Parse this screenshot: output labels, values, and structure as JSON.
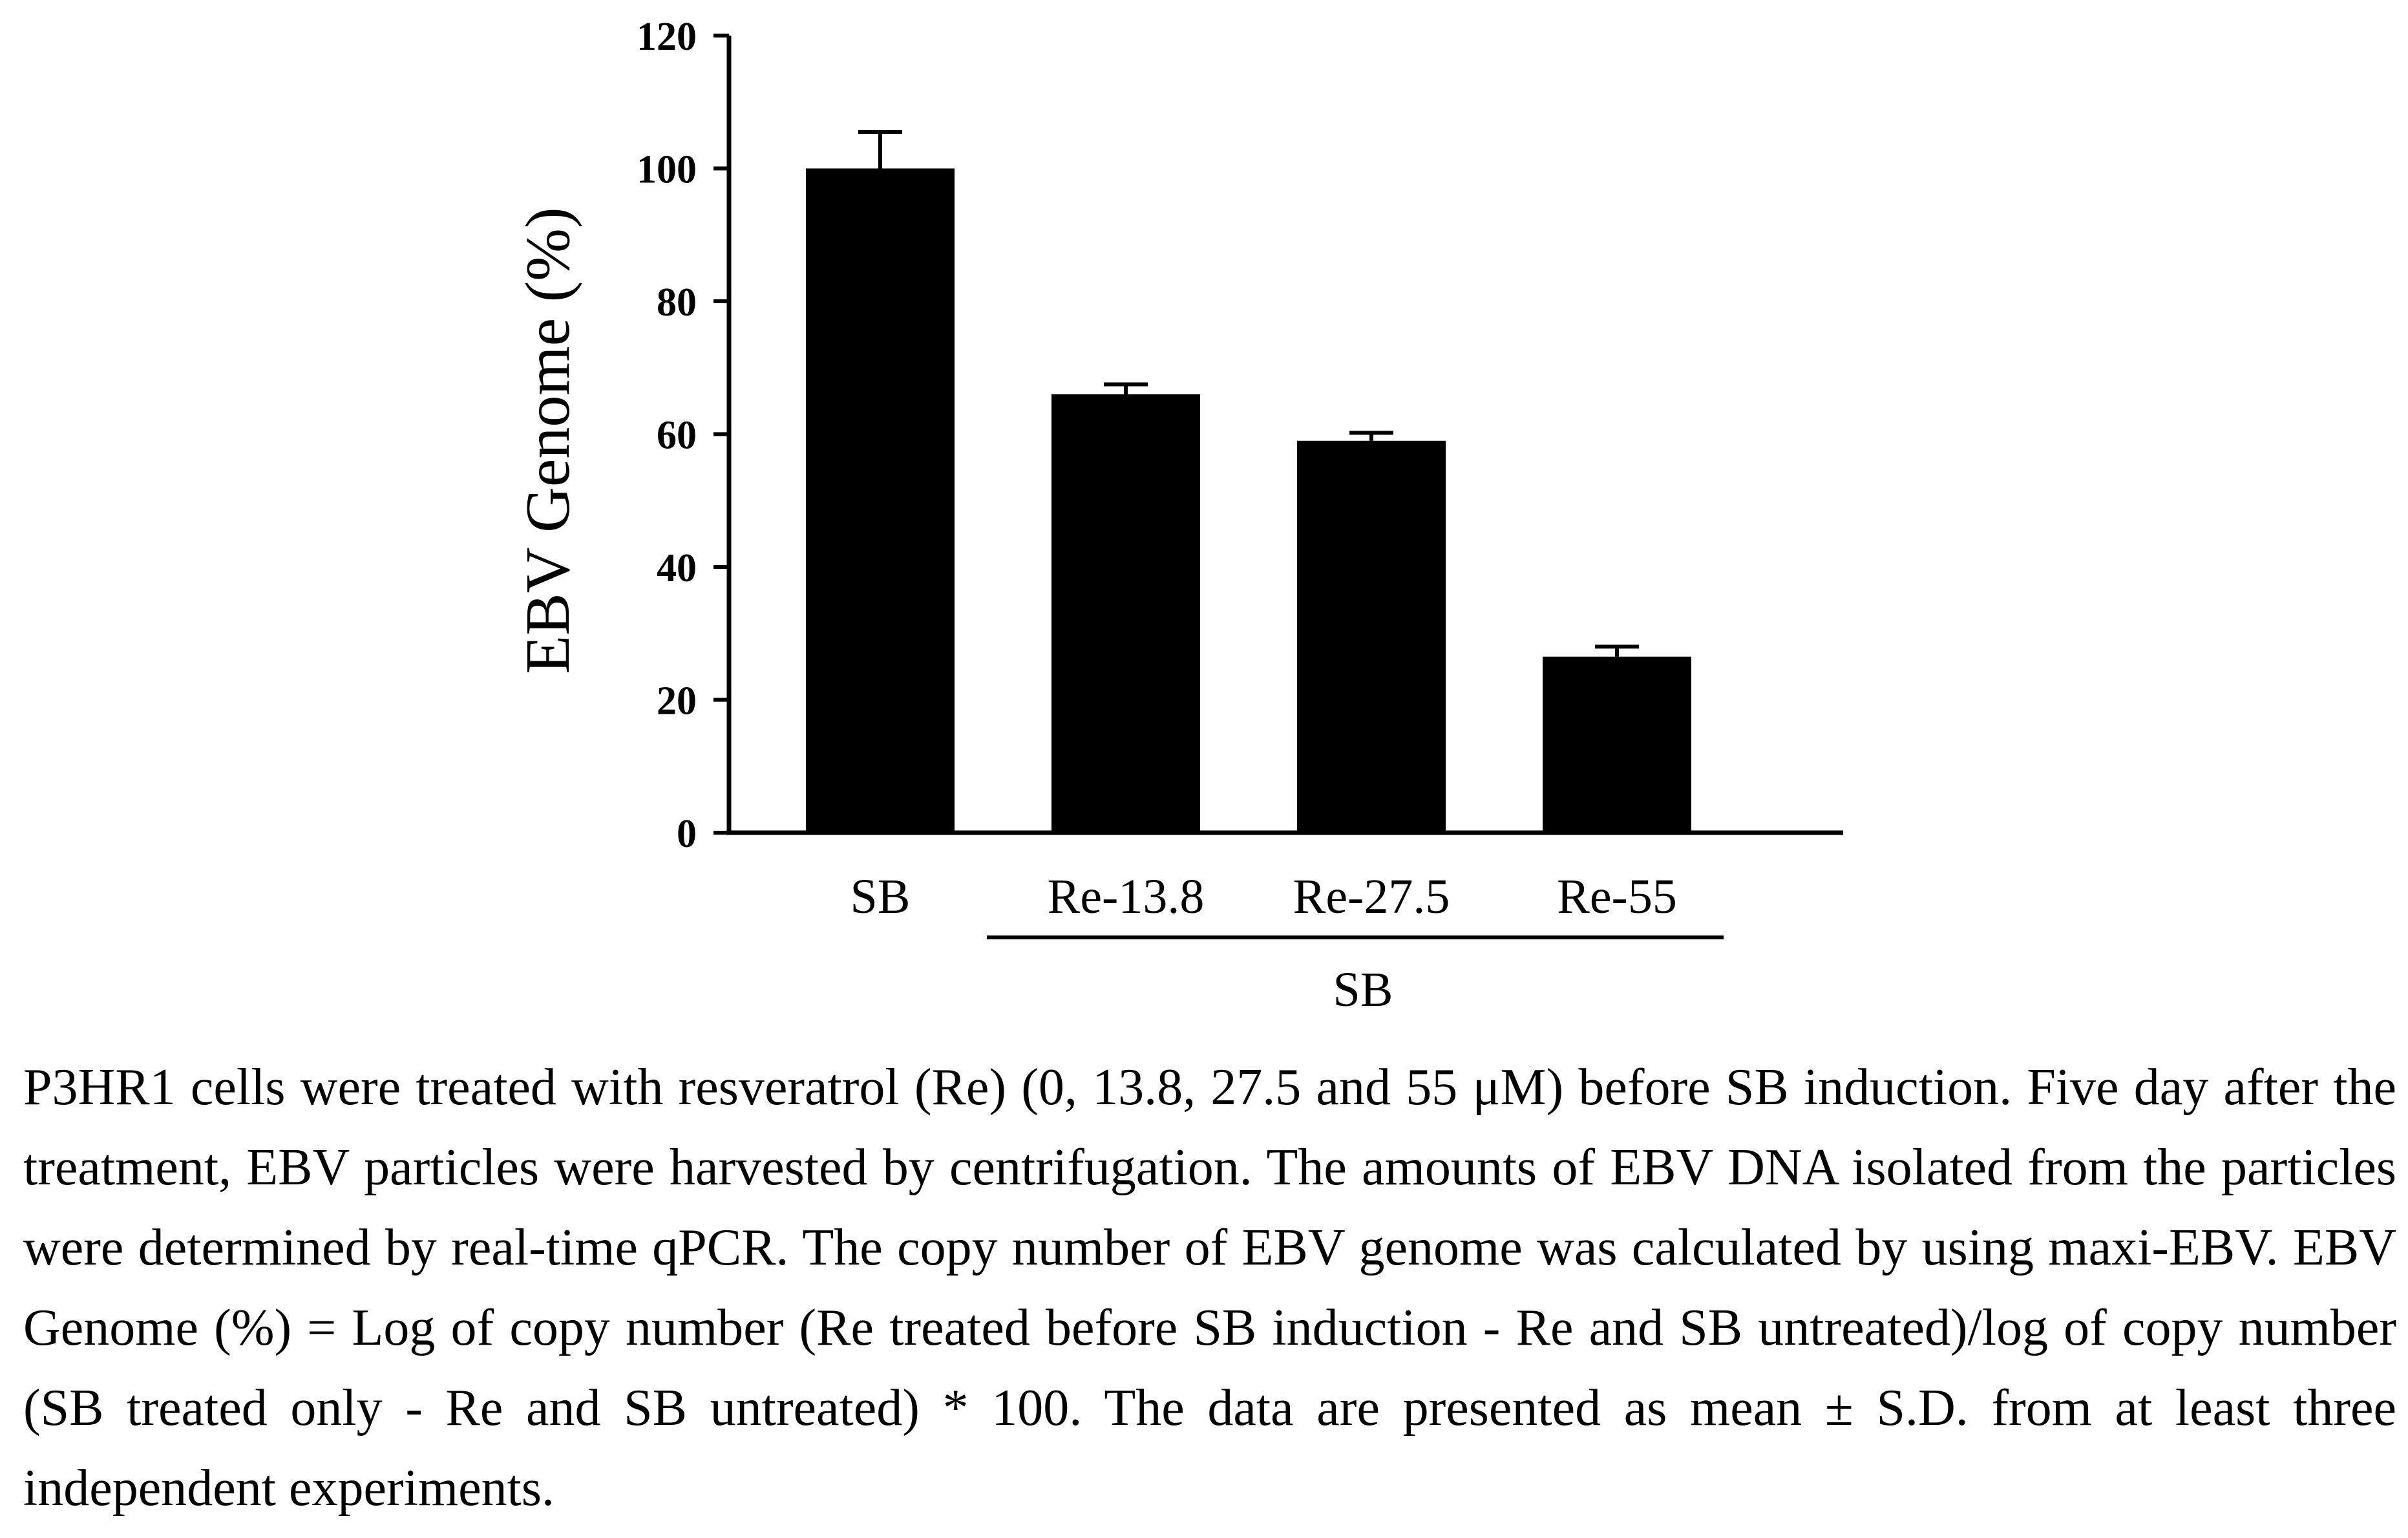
{
  "chart_data": {
    "type": "bar",
    "categories": [
      "SB",
      "Re-13.8",
      "Re-27.5",
      "Re-55"
    ],
    "values": [
      100,
      66,
      59,
      26.5
    ],
    "error": [
      5.5,
      1.5,
      1.2,
      1.5
    ],
    "ylabel": "EBV Genome (%)",
    "xlabel": "",
    "ylim": [
      0,
      120
    ],
    "yticks": [
      0,
      20,
      40,
      60,
      80,
      100,
      120
    ],
    "bar_color": "#000000",
    "grid": false,
    "group_bracket": {
      "label": "SB",
      "categories": [
        "Re-13.8",
        "Re-27.5",
        "Re-55"
      ]
    }
  },
  "caption": "P3HR1 cells were treated with resveratrol (Re) (0, 13.8, 27.5 and 55 μM) before SB induction. Five day after the treatment, EBV particles were harvested by centrifugation. The amounts of EBV DNA isolated from the particles were determined by real-time qPCR. The copy number of EBV genome was calculated by using maxi-EBV. EBV Genome (%) = Log of copy number (Re treated before SB induction - Re and SB untreated)/log of copy number (SB treated only - Re and SB untreated) * 100. The data are presented as mean ± S.D. from at least three independent experiments."
}
